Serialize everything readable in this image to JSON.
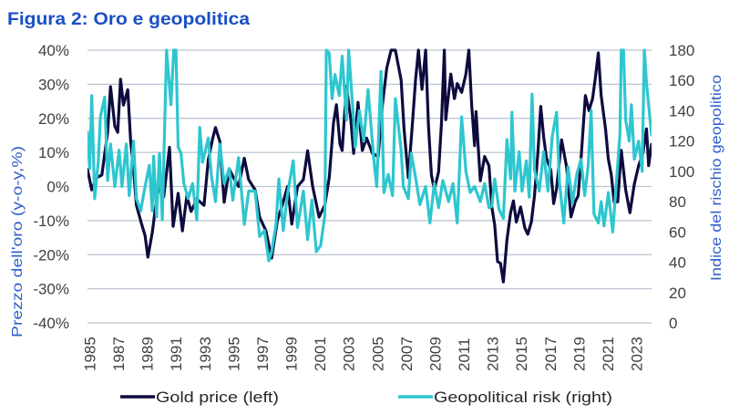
{
  "chart_data": {
    "type": "line",
    "title": "Figura 2: Oro e geopolitica",
    "xlabel": "",
    "ylabel_left": "Prezzo dell'oro (y-o-y,%)",
    "ylabel_right": "Indice del rischio geopolitico",
    "grid": true,
    "legend": {
      "position": "bottom"
    },
    "x_range": [
      1985,
      2024.2
    ],
    "x_ticks": [
      {
        "value": 1985,
        "label": "1985"
      },
      {
        "value": 1987,
        "label": "1987"
      },
      {
        "value": 1989,
        "label": "1989"
      },
      {
        "value": 1991,
        "label": "1991"
      },
      {
        "value": 1993,
        "label": "1993"
      },
      {
        "value": 1995,
        "label": "1995"
      },
      {
        "value": 1997,
        "label": "1997"
      },
      {
        "value": 1999,
        "label": "1999"
      },
      {
        "value": 2001,
        "label": "2001"
      },
      {
        "value": 2003,
        "label": "2003"
      },
      {
        "value": 2005,
        "label": "2005"
      },
      {
        "value": 2007,
        "label": "2007"
      },
      {
        "value": 2009,
        "label": "2009"
      },
      {
        "value": 2011,
        "label": "2011"
      },
      {
        "value": 2013,
        "label": "2013"
      },
      {
        "value": 2015,
        "label": "2015"
      },
      {
        "value": 2017,
        "label": "2017"
      },
      {
        "value": 2019,
        "label": "2019"
      },
      {
        "value": 2021,
        "label": "2021"
      },
      {
        "value": 2023,
        "label": "2023"
      }
    ],
    "y_left": {
      "range": [
        -40,
        40
      ],
      "ticks": [
        {
          "value": 40,
          "label": "40%"
        },
        {
          "value": 30,
          "label": "30%"
        },
        {
          "value": 20,
          "label": "20%"
        },
        {
          "value": 10,
          "label": "10%"
        },
        {
          "value": 0,
          "label": "0%"
        },
        {
          "value": -10,
          "label": "-10%"
        },
        {
          "value": -20,
          "label": "-20%"
        },
        {
          "value": -30,
          "label": "-30%"
        },
        {
          "value": -40,
          "label": "-40%"
        }
      ]
    },
    "y_right": {
      "range": [
        0,
        180
      ],
      "ticks": [
        {
          "value": 180,
          "label": "180"
        },
        {
          "value": 160,
          "label": "160"
        },
        {
          "value": 140,
          "label": "140"
        },
        {
          "value": 120,
          "label": "120"
        },
        {
          "value": 100,
          "label": "100"
        },
        {
          "value": 80,
          "label": "80"
        },
        {
          "value": 60,
          "label": "60"
        },
        {
          "value": 40,
          "label": "40"
        },
        {
          "value": 20,
          "label": "20"
        },
        {
          "value": 0,
          "label": "0"
        }
      ]
    },
    "series": [
      {
        "name": "Gold price (left)",
        "axis": "left",
        "color": "#0d0b3e",
        "x": [
          1985.0,
          1985.3,
          1985.6,
          1986.0,
          1986.4,
          1986.6,
          1986.9,
          1987.1,
          1987.3,
          1987.5,
          1987.8,
          1988.0,
          1988.2,
          1988.4,
          1988.75,
          1989.0,
          1989.2,
          1989.5,
          1989.8,
          1990.1,
          1990.3,
          1990.7,
          1990.95,
          1991.3,
          1991.6,
          1991.9,
          1992.2,
          1992.6,
          1993.1,
          1993.4,
          1993.7,
          1993.9,
          1994.2,
          1994.5,
          1994.85,
          1995.1,
          1995.5,
          1995.9,
          1996.2,
          1996.65,
          1996.96,
          1997.4,
          1997.8,
          1998.2,
          1998.5,
          1998.9,
          1999.2,
          1999.6,
          2000.0,
          2000.3,
          2000.65,
          2001.1,
          2001.5,
          2001.8,
          2002.1,
          2002.3,
          2002.55,
          2002.7,
          2003.0,
          2003.3,
          2003.5,
          2003.8,
          2004.1,
          2004.4,
          2004.8,
          2005.2,
          2005.5,
          2005.8,
          2006.1,
          2006.4,
          2006.8,
          2007.0,
          2007.3,
          2007.6,
          2007.8,
          2008.0,
          2008.25,
          2008.5,
          2008.7,
          2008.9,
          2009.1,
          2009.4,
          2009.6,
          2009.8,
          2009.9,
          2010.25,
          2010.5,
          2010.7,
          2011.0,
          2011.3,
          2011.5,
          2011.7,
          2011.9,
          2012.0,
          2012.3,
          2012.6,
          2012.9,
          2013.1,
          2013.3,
          2013.5,
          2013.7,
          2013.9,
          2014.15,
          2014.4,
          2014.6,
          2014.8,
          2015.1,
          2015.4,
          2015.6,
          2015.85,
          2016.06,
          2016.3,
          2016.5,
          2016.7,
          2016.9,
          2017.2,
          2017.4,
          2017.6,
          2017.95,
          2018.3,
          2018.6,
          2018.9,
          2019.1,
          2019.3,
          2019.6,
          2019.85,
          2020.1,
          2020.3,
          2020.5,
          2020.7,
          2021.0,
          2021.2,
          2021.4,
          2021.6,
          2021.85,
          2022.1,
          2022.4,
          2022.7,
          2023.0,
          2023.3,
          2023.6,
          2023.85,
          2024.0,
          2024.2
        ],
        "values": [
          5,
          -1,
          2.5,
          3.4,
          15.9,
          29.3,
          17.7,
          15.9,
          31.5,
          23.9,
          28.4,
          13.2,
          5.2,
          -5.5,
          -10.8,
          -14.4,
          -20.7,
          -13.5,
          -3.7,
          2.5,
          -3,
          11.5,
          -11.7,
          -2,
          -13,
          -2.8,
          -7.3,
          -3.7,
          -5.5,
          7.9,
          14.1,
          17.3,
          13.2,
          -4.6,
          5.2,
          3,
          0,
          8.3,
          2,
          -1,
          -9,
          -13,
          -21,
          -10,
          -6,
          0,
          -11,
          0,
          2,
          10.5,
          0,
          -9,
          -5.4,
          2.6,
          18.7,
          24,
          12.4,
          10.6,
          29.4,
          19.6,
          9.7,
          24.7,
          10.6,
          14.2,
          9.7,
          8.8,
          24,
          34.7,
          40,
          40,
          31.2,
          16.9,
          2.6,
          19.6,
          31.2,
          40,
          28.5,
          40,
          17.8,
          3.5,
          -1,
          4.3,
          18.7,
          40,
          19.6,
          33,
          25.8,
          30.2,
          27.6,
          33,
          40,
          24,
          12,
          22,
          1.7,
          8.8,
          6.1,
          -6,
          -11.3,
          -22,
          -22.5,
          -28,
          -15.7,
          -7.7,
          -4.2,
          -10.4,
          -6,
          -12.2,
          -14,
          -10.4,
          -2.8,
          10,
          23.5,
          14.6,
          8.3,
          4.8,
          -5,
          -0.6,
          13.7,
          5.7,
          -8.9,
          -4.4,
          -2.7,
          8,
          26.7,
          22.3,
          25.8,
          32,
          39.2,
          26.7,
          16.9,
          8,
          3.5,
          -4.5,
          -4.5,
          10.6,
          -1,
          -7.7,
          0.7,
          6.1,
          9.7,
          16.9,
          6.1,
          12.4
        ]
      },
      {
        "name": "Geopolitical risk (right)",
        "axis": "right",
        "color": "#2ec6cf",
        "x": [
          1985.0,
          1985.15,
          1985.3,
          1985.5,
          1985.75,
          1985.9,
          1986.2,
          1986.4,
          1986.6,
          1986.9,
          1987.2,
          1987.4,
          1987.7,
          1987.9,
          1988.2,
          1988.4,
          1988.7,
          1989.0,
          1989.3,
          1989.5,
          1989.6,
          1989.8,
          1990.0,
          1990.2,
          1990.5,
          1990.8,
          1991.0,
          1991.15,
          1991.3,
          1991.5,
          1991.7,
          1992.0,
          1992.3,
          1992.6,
          1992.8,
          1993.0,
          1993.4,
          1993.6,
          1993.9,
          1994.2,
          1994.5,
          1994.85,
          1995.1,
          1995.5,
          1995.9,
          1996.2,
          1996.65,
          1996.96,
          1997.3,
          1997.6,
          1997.8,
          1998.1,
          1998.3,
          1998.6,
          1998.9,
          1999.3,
          1999.6,
          2000.0,
          2000.3,
          2000.6,
          2000.9,
          2001.2,
          2001.5,
          2001.6,
          2001.8,
          2002.0,
          2002.2,
          2002.5,
          2002.7,
          2003.0,
          2003.15,
          2003.5,
          2003.6,
          2003.9,
          2004.2,
          2004.5,
          2004.9,
          2005.1,
          2005.4,
          2005.6,
          2005.9,
          2006.2,
          2006.4,
          2006.8,
          2006.95,
          2007.3,
          2007.5,
          2007.8,
          2008.1,
          2008.5,
          2008.8,
          2009.1,
          2009.4,
          2009.7,
          2010.1,
          2010.4,
          2010.7,
          2011.0,
          2011.3,
          2011.6,
          2011.9,
          2012.3,
          2012.6,
          2012.9,
          2013.1,
          2013.3,
          2013.6,
          2013.9,
          2014.15,
          2014.4,
          2014.5,
          2014.7,
          2015.0,
          2015.2,
          2015.5,
          2015.7,
          2015.9,
          2016.06,
          2016.4,
          2016.7,
          2017.0,
          2017.3,
          2017.6,
          2017.8,
          2018.1,
          2018.4,
          2018.7,
          2019.0,
          2019.3,
          2019.55,
          2019.8,
          2020.0,
          2020.2,
          2020.5,
          2020.7,
          2020.9,
          2021.2,
          2021.5,
          2021.75,
          2022.0,
          2022.1,
          2022.25,
          2022.4,
          2022.65,
          2022.8,
          2023.0,
          2023.3,
          2023.55,
          2023.7,
          2023.85,
          2024.0,
          2024.2
        ],
        "values": [
          126,
          102,
          150,
          82,
          106,
          136,
          149,
          94,
          118,
          90,
          114,
          90,
          118,
          84,
          120,
          82,
          74,
          90,
          104,
          74,
          110,
          70,
          112,
          68,
          180,
          144,
          180,
          180,
          116,
          112,
          92,
          82,
          92,
          68,
          129,
          106,
          122,
          98,
          80,
          118,
          92,
          102,
          81,
          109,
          65,
          87,
          87,
          57,
          61,
          41,
          47,
          65,
          95,
          61,
          85,
          107,
          63,
          87,
          55,
          81,
          47,
          51,
          71,
          180,
          178,
          148,
          164,
          150,
          176,
          134,
          180,
          134,
          116,
          140,
          120,
          154,
          108,
          90,
          166,
          86,
          98,
          84,
          148,
          114,
          90,
          82,
          112,
          96,
          78,
          90,
          66,
          92,
          76,
          94,
          80,
          92,
          66,
          136,
          100,
          86,
          90,
          80,
          92,
          76,
          77,
          95,
          75,
          69,
          121,
          95,
          139,
          87,
          113,
          87,
          107,
          83,
          151,
          101,
          87,
          113,
          87,
          123,
          139,
          93,
          66,
          103,
          79,
          98,
          108,
          84,
          104,
          140,
          72,
          66,
          80,
          64,
          86,
          60,
          92,
          124,
          180,
          180,
          134,
          120,
          144,
          108,
          120,
          100,
          180,
          158,
          144,
          124
        ]
      }
    ]
  }
}
